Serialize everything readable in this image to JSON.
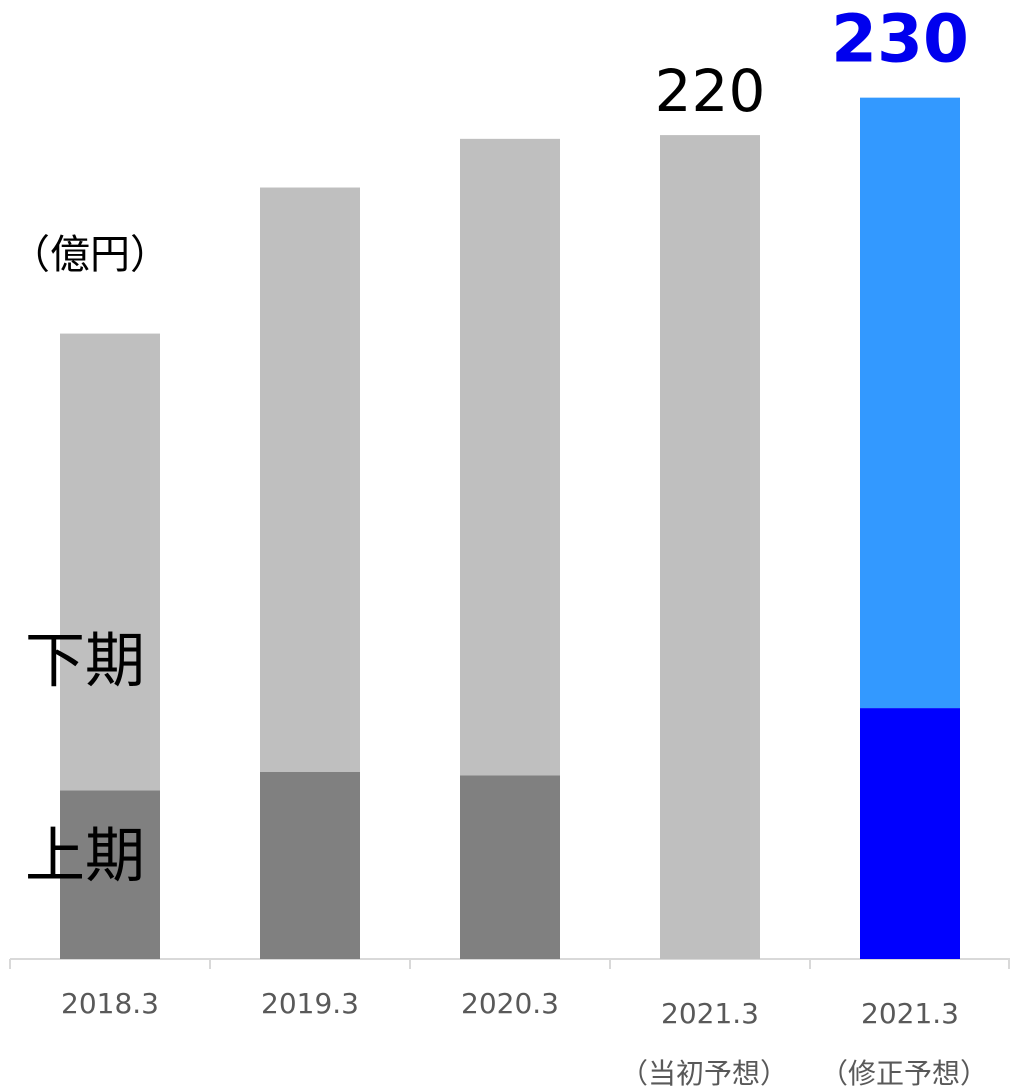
{
  "chart_data": {
    "type": "stacked-bar",
    "y_label": "（億円）",
    "categories": [
      "2018.3",
      "2019.3",
      "2020.3",
      "2021.3",
      "2021.3"
    ],
    "category_notes": [
      null,
      null,
      null,
      "（当初予想）",
      "（修正予想）"
    ],
    "series": [
      {
        "name": "上期",
        "colors": [
          "#808080",
          "#808080",
          "#808080",
          "#808080",
          "#0000ff"
        ],
        "values": [
          45,
          50,
          49,
          null,
          67
        ]
      },
      {
        "name": "下期",
        "colors": [
          "#bfbfbf",
          "#bfbfbf",
          "#bfbfbf",
          "#bfbfbf",
          "#3399ff"
        ],
        "values": [
          122,
          156,
          170,
          220,
          163
        ]
      }
    ],
    "totals": [
      null,
      null,
      null,
      220,
      230
    ],
    "total_colors": [
      "#000000",
      "#000000",
      "#000000",
      "#000000",
      "#0000ee"
    ],
    "ylim": [
      0,
      250
    ]
  }
}
